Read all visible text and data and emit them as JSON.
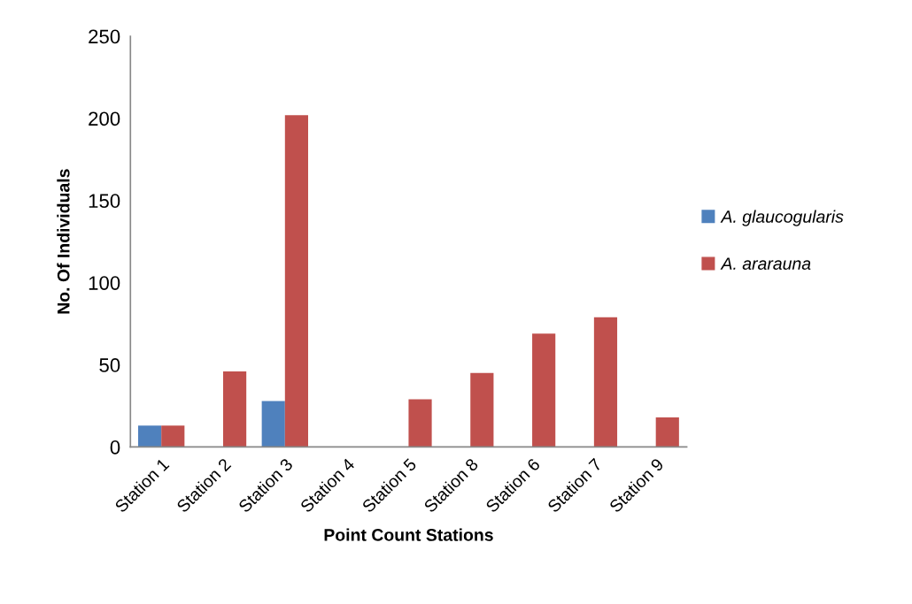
{
  "chart_data": {
    "type": "bar",
    "xlabel": "Point Count Stations",
    "ylabel": "No. Of Individuals",
    "categories": [
      "Station 1",
      "Station 2",
      "Station 3",
      "Station 4",
      "Station 5",
      "Station 8",
      "Station 6",
      "Station 7",
      "Station 9"
    ],
    "series": [
      {
        "name": "A. glaucogularis",
        "color": "#4f81bd",
        "values": [
          13,
          0,
          28,
          0,
          0,
          0,
          0,
          0,
          0
        ]
      },
      {
        "name": "A. ararauna",
        "color": "#c0504d",
        "values": [
          13,
          46,
          202,
          0,
          29,
          45,
          69,
          79,
          18
        ]
      }
    ],
    "ylim": [
      0,
      250
    ],
    "yticks": [
      0,
      50,
      100,
      150,
      200,
      250
    ],
    "grid": false,
    "legend": "right"
  }
}
